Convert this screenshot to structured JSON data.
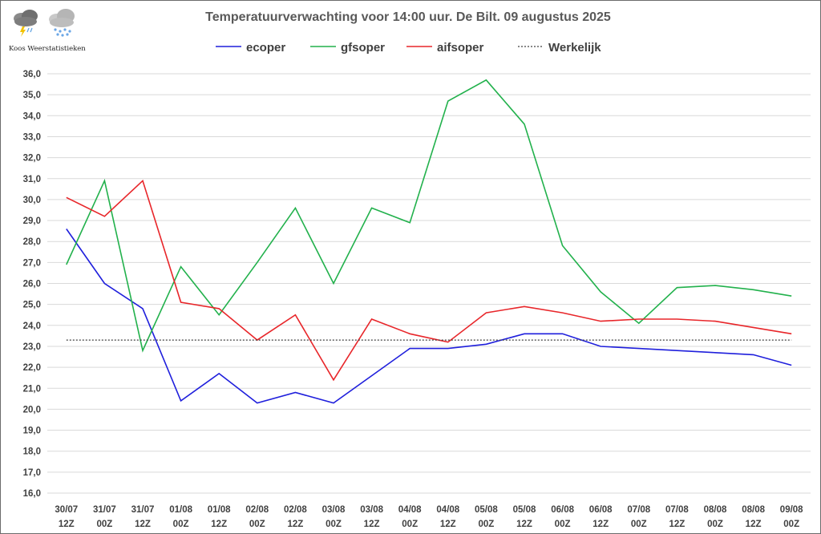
{
  "logo": {
    "text": "Koos Weerstatistieken"
  },
  "chart_data": {
    "type": "line",
    "title": "Temperatuurverwachting voor 14:00 uur. De Bilt. 09 augustus 2025",
    "xlabel": "",
    "ylabel": "",
    "ylim": [
      16.0,
      36.0
    ],
    "ystep": 1.0,
    "grid": true,
    "legend_position": "top-center",
    "categories": [
      [
        "30/07",
        "12Z"
      ],
      [
        "31/07",
        "00Z"
      ],
      [
        "31/07",
        "12Z"
      ],
      [
        "01/08",
        "00Z"
      ],
      [
        "01/08",
        "12Z"
      ],
      [
        "02/08",
        "00Z"
      ],
      [
        "02/08",
        "12Z"
      ],
      [
        "03/08",
        "00Z"
      ],
      [
        "03/08",
        "12Z"
      ],
      [
        "04/08",
        "00Z"
      ],
      [
        "04/08",
        "12Z"
      ],
      [
        "05/08",
        "00Z"
      ],
      [
        "05/08",
        "12Z"
      ],
      [
        "06/08",
        "00Z"
      ],
      [
        "06/08",
        "12Z"
      ],
      [
        "07/08",
        "00Z"
      ],
      [
        "07/08",
        "12Z"
      ],
      [
        "08/08",
        "00Z"
      ],
      [
        "08/08",
        "12Z"
      ],
      [
        "09/08",
        "00Z"
      ]
    ],
    "series": [
      {
        "name": "ecoper",
        "color": "#1f1fdc",
        "dash": "",
        "values": [
          28.6,
          26.0,
          24.8,
          20.4,
          21.7,
          20.3,
          20.8,
          20.3,
          21.6,
          22.9,
          22.9,
          23.1,
          23.6,
          23.6,
          23.0,
          22.9,
          22.8,
          22.7,
          22.6,
          22.1
        ]
      },
      {
        "name": "gfsoper",
        "color": "#22b14c",
        "dash": "",
        "values": [
          26.9,
          30.9,
          22.8,
          26.8,
          24.5,
          27.0,
          29.6,
          26.0,
          29.6,
          28.9,
          34.7,
          35.7,
          33.6,
          27.8,
          25.6,
          24.1,
          25.8,
          25.9,
          25.7,
          25.4
        ]
      },
      {
        "name": "aifsoper",
        "color": "#e8262a",
        "dash": "",
        "values": [
          30.1,
          29.2,
          30.9,
          25.1,
          24.8,
          23.3,
          24.5,
          21.4,
          24.3,
          23.6,
          23.2,
          24.6,
          24.9,
          24.6,
          24.2,
          24.3,
          24.3,
          24.2,
          23.9,
          23.6
        ]
      },
      {
        "name": "Werkelijk",
        "color": "#404040",
        "dash": "2,2",
        "values": [
          23.3,
          23.3,
          23.3,
          23.3,
          23.3,
          23.3,
          23.3,
          23.3,
          23.3,
          23.3,
          23.3,
          23.3,
          23.3,
          23.3,
          23.3,
          23.3,
          23.3,
          23.3,
          23.3,
          23.3
        ]
      }
    ]
  }
}
